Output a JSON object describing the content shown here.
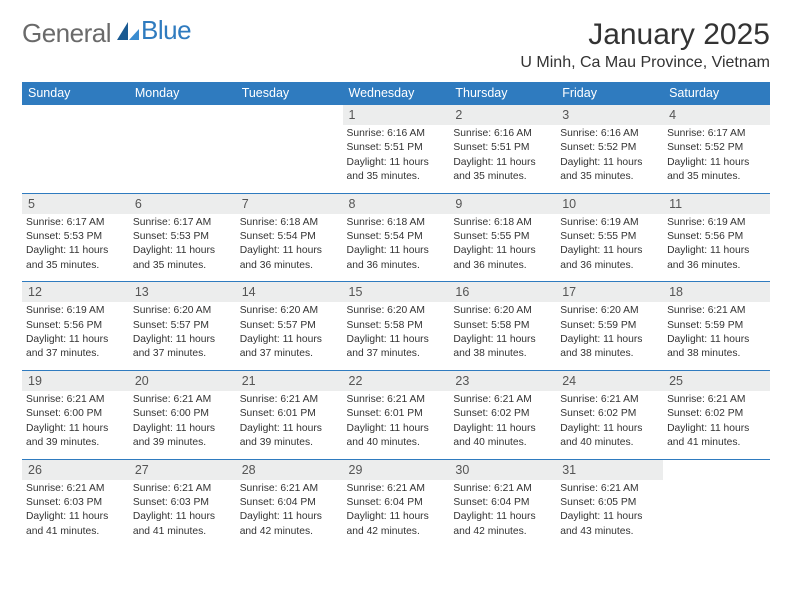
{
  "brand": {
    "word1": "General",
    "word2": "Blue"
  },
  "title": "January 2025",
  "location": "U Minh, Ca Mau Province, Vietnam",
  "colors": {
    "header_bg": "#2f7bbf",
    "header_text": "#ffffff",
    "daynum_bg": "#eceded",
    "border": "#2f7bbf",
    "logo_gray": "#6a6a6a",
    "logo_blue": "#2f7bbf",
    "background": "#ffffff"
  },
  "day_labels": [
    "Sunday",
    "Monday",
    "Tuesday",
    "Wednesday",
    "Thursday",
    "Friday",
    "Saturday"
  ],
  "weeks": [
    [
      {
        "empty": true
      },
      {
        "empty": true
      },
      {
        "empty": true
      },
      {
        "num": "1",
        "sunrise": "6:16 AM",
        "sunset": "5:51 PM",
        "daylight": "11 hours and 35 minutes."
      },
      {
        "num": "2",
        "sunrise": "6:16 AM",
        "sunset": "5:51 PM",
        "daylight": "11 hours and 35 minutes."
      },
      {
        "num": "3",
        "sunrise": "6:16 AM",
        "sunset": "5:52 PM",
        "daylight": "11 hours and 35 minutes."
      },
      {
        "num": "4",
        "sunrise": "6:17 AM",
        "sunset": "5:52 PM",
        "daylight": "11 hours and 35 minutes."
      }
    ],
    [
      {
        "num": "5",
        "sunrise": "6:17 AM",
        "sunset": "5:53 PM",
        "daylight": "11 hours and 35 minutes."
      },
      {
        "num": "6",
        "sunrise": "6:17 AM",
        "sunset": "5:53 PM",
        "daylight": "11 hours and 35 minutes."
      },
      {
        "num": "7",
        "sunrise": "6:18 AM",
        "sunset": "5:54 PM",
        "daylight": "11 hours and 36 minutes."
      },
      {
        "num": "8",
        "sunrise": "6:18 AM",
        "sunset": "5:54 PM",
        "daylight": "11 hours and 36 minutes."
      },
      {
        "num": "9",
        "sunrise": "6:18 AM",
        "sunset": "5:55 PM",
        "daylight": "11 hours and 36 minutes."
      },
      {
        "num": "10",
        "sunrise": "6:19 AM",
        "sunset": "5:55 PM",
        "daylight": "11 hours and 36 minutes."
      },
      {
        "num": "11",
        "sunrise": "6:19 AM",
        "sunset": "5:56 PM",
        "daylight": "11 hours and 36 minutes."
      }
    ],
    [
      {
        "num": "12",
        "sunrise": "6:19 AM",
        "sunset": "5:56 PM",
        "daylight": "11 hours and 37 minutes."
      },
      {
        "num": "13",
        "sunrise": "6:20 AM",
        "sunset": "5:57 PM",
        "daylight": "11 hours and 37 minutes."
      },
      {
        "num": "14",
        "sunrise": "6:20 AM",
        "sunset": "5:57 PM",
        "daylight": "11 hours and 37 minutes."
      },
      {
        "num": "15",
        "sunrise": "6:20 AM",
        "sunset": "5:58 PM",
        "daylight": "11 hours and 37 minutes."
      },
      {
        "num": "16",
        "sunrise": "6:20 AM",
        "sunset": "5:58 PM",
        "daylight": "11 hours and 38 minutes."
      },
      {
        "num": "17",
        "sunrise": "6:20 AM",
        "sunset": "5:59 PM",
        "daylight": "11 hours and 38 minutes."
      },
      {
        "num": "18",
        "sunrise": "6:21 AM",
        "sunset": "5:59 PM",
        "daylight": "11 hours and 38 minutes."
      }
    ],
    [
      {
        "num": "19",
        "sunrise": "6:21 AM",
        "sunset": "6:00 PM",
        "daylight": "11 hours and 39 minutes."
      },
      {
        "num": "20",
        "sunrise": "6:21 AM",
        "sunset": "6:00 PM",
        "daylight": "11 hours and 39 minutes."
      },
      {
        "num": "21",
        "sunrise": "6:21 AM",
        "sunset": "6:01 PM",
        "daylight": "11 hours and 39 minutes."
      },
      {
        "num": "22",
        "sunrise": "6:21 AM",
        "sunset": "6:01 PM",
        "daylight": "11 hours and 40 minutes."
      },
      {
        "num": "23",
        "sunrise": "6:21 AM",
        "sunset": "6:02 PM",
        "daylight": "11 hours and 40 minutes."
      },
      {
        "num": "24",
        "sunrise": "6:21 AM",
        "sunset": "6:02 PM",
        "daylight": "11 hours and 40 minutes."
      },
      {
        "num": "25",
        "sunrise": "6:21 AM",
        "sunset": "6:02 PM",
        "daylight": "11 hours and 41 minutes."
      }
    ],
    [
      {
        "num": "26",
        "sunrise": "6:21 AM",
        "sunset": "6:03 PM",
        "daylight": "11 hours and 41 minutes."
      },
      {
        "num": "27",
        "sunrise": "6:21 AM",
        "sunset": "6:03 PM",
        "daylight": "11 hours and 41 minutes."
      },
      {
        "num": "28",
        "sunrise": "6:21 AM",
        "sunset": "6:04 PM",
        "daylight": "11 hours and 42 minutes."
      },
      {
        "num": "29",
        "sunrise": "6:21 AM",
        "sunset": "6:04 PM",
        "daylight": "11 hours and 42 minutes."
      },
      {
        "num": "30",
        "sunrise": "6:21 AM",
        "sunset": "6:04 PM",
        "daylight": "11 hours and 42 minutes."
      },
      {
        "num": "31",
        "sunrise": "6:21 AM",
        "sunset": "6:05 PM",
        "daylight": "11 hours and 43 minutes."
      },
      {
        "empty": true
      }
    ]
  ]
}
